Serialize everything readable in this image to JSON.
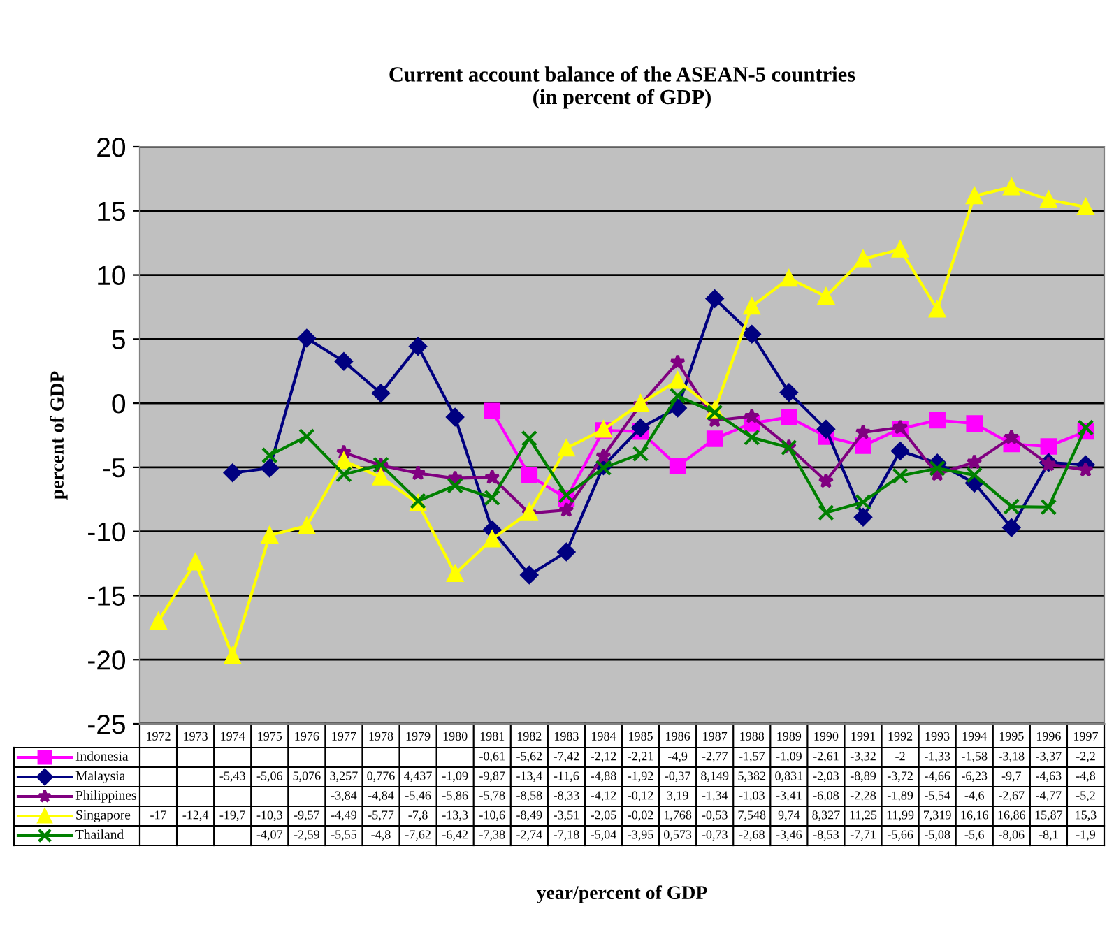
{
  "chart_data": {
    "type": "line",
    "title": "Current account balance of the ASEAN-5 countries\n(in percent of GDP)",
    "annotations": [
      "year/percent of GDP"
    ],
    "ylabel": "percent of GDP",
    "categories": [
      "1972",
      "1973",
      "1974",
      "1975",
      "1976",
      "1977",
      "1978",
      "1979",
      "1980",
      "1981",
      "1982",
      "1983",
      "1984",
      "1985",
      "1986",
      "1987",
      "1988",
      "1989",
      "1990",
      "1991",
      "1992",
      "1993",
      "1994",
      "1995",
      "1996",
      "1997"
    ],
    "ylim": [
      -25,
      20
    ],
    "yticks": [
      -25,
      -20,
      -15,
      -10,
      -5,
      0,
      5,
      10,
      15,
      20
    ],
    "grid": "y",
    "legend": "bottom",
    "series": [
      {
        "name": "Indonesia",
        "color": "#ff00ff",
        "marker": "square",
        "values": [
          null,
          null,
          null,
          null,
          null,
          null,
          null,
          null,
          null,
          -0.61,
          -5.62,
          -7.42,
          -2.12,
          -2.21,
          -4.9,
          -2.77,
          -1.57,
          -1.09,
          -2.61,
          -3.32,
          -2,
          -1.33,
          -1.58,
          -3.18,
          -3.37,
          -2.2
        ],
        "value_labels": [
          null,
          null,
          null,
          null,
          null,
          null,
          null,
          null,
          null,
          "-0,61",
          "-5,62",
          "-7,42",
          "-2,12",
          "-2,21",
          "-4,9",
          "-2,77",
          "-1,57",
          "-1,09",
          "-2,61",
          "-3,32",
          "-2",
          "-1,33",
          "-1,58",
          "-3,18",
          "-3,37",
          "-2,2"
        ]
      },
      {
        "name": "Malaysia",
        "color": "#000080",
        "marker": "diamond",
        "values": [
          null,
          null,
          -5.43,
          -5.06,
          5.076,
          3.257,
          0.776,
          4.437,
          -1.09,
          -9.87,
          -13.4,
          -11.6,
          -4.88,
          -1.92,
          -0.37,
          8.149,
          5.382,
          0.831,
          -2.03,
          -8.89,
          -3.72,
          -4.66,
          -6.23,
          -9.7,
          -4.63,
          -4.8
        ],
        "value_labels": [
          null,
          null,
          "-5,43",
          "-5,06",
          "5,076",
          "3,257",
          "0,776",
          "4,437",
          "-1,09",
          "-9,87",
          "-13,4",
          "-11,6",
          "-4,88",
          "-1,92",
          "-0,37",
          "8,149",
          "5,382",
          "0,831",
          "-2,03",
          "-8,89",
          "-3,72",
          "-4,66",
          "-6,23",
          "-9,7",
          "-4,63",
          "-4,8"
        ]
      },
      {
        "name": "Philippines",
        "color": "#800080",
        "marker": "star",
        "values": [
          null,
          null,
          null,
          null,
          null,
          -3.84,
          -4.84,
          -5.46,
          -5.86,
          -5.78,
          -8.58,
          -8.33,
          -4.12,
          -0.12,
          3.19,
          -1.34,
          -1.03,
          -3.41,
          -6.08,
          -2.28,
          -1.89,
          -5.54,
          -4.6,
          -2.67,
          -4.77,
          -5.2
        ],
        "value_labels": [
          null,
          null,
          null,
          null,
          null,
          "-3,84",
          "-4,84",
          "-5,46",
          "-5,86",
          "-5,78",
          "-8,58",
          "-8,33",
          "-4,12",
          "-0,12",
          "3,19",
          "-1,34",
          "-1,03",
          "-3,41",
          "-6,08",
          "-2,28",
          "-1,89",
          "-5,54",
          "-4,6",
          "-2,67",
          "-4,77",
          "-5,2"
        ]
      },
      {
        "name": "Singapore",
        "color": "#ffff00",
        "marker": "triangle",
        "values": [
          -17,
          -12.4,
          -19.7,
          -10.3,
          -9.57,
          -4.49,
          -5.77,
          -7.8,
          -13.3,
          -10.6,
          -8.49,
          -3.51,
          -2.05,
          -0.02,
          1.768,
          -0.53,
          7.548,
          9.74,
          8.327,
          11.25,
          11.99,
          7.319,
          16.16,
          16.86,
          15.87,
          15.3
        ],
        "value_labels": [
          "-17",
          "-12,4",
          "-19,7",
          "-10,3",
          "-9,57",
          "-4,49",
          "-5,77",
          "-7,8",
          "-13,3",
          "-10,6",
          "-8,49",
          "-3,51",
          "-2,05",
          "-0,02",
          "1,768",
          "-0,53",
          "7,548",
          "9,74",
          "8,327",
          "11,25",
          "11,99",
          "7,319",
          "16,16",
          "16,86",
          "15,87",
          "15,3"
        ]
      },
      {
        "name": "Thailand",
        "color": "#008000",
        "marker": "cross",
        "values": [
          null,
          null,
          null,
          -4.07,
          -2.59,
          -5.55,
          -4.8,
          -7.62,
          -6.42,
          -7.38,
          -2.74,
          -7.18,
          -5.04,
          -3.95,
          0.573,
          -0.73,
          -2.68,
          -3.46,
          -8.53,
          -7.71,
          -5.66,
          -5.08,
          -5.6,
          -8.06,
          -8.1,
          -1.9
        ],
        "value_labels": [
          null,
          null,
          null,
          "-4,07",
          "-2,59",
          "-5,55",
          "-4,8",
          "-7,62",
          "-6,42",
          "-7,38",
          "-2,74",
          "-7,18",
          "-5,04",
          "-3,95",
          "0,573",
          "-0,73",
          "-2,68",
          "-3,46",
          "-8,53",
          "-7,71",
          "-5,66",
          "-5,08",
          "-5,6",
          "-8,06",
          "-8,1",
          "-1,9"
        ]
      }
    ]
  }
}
